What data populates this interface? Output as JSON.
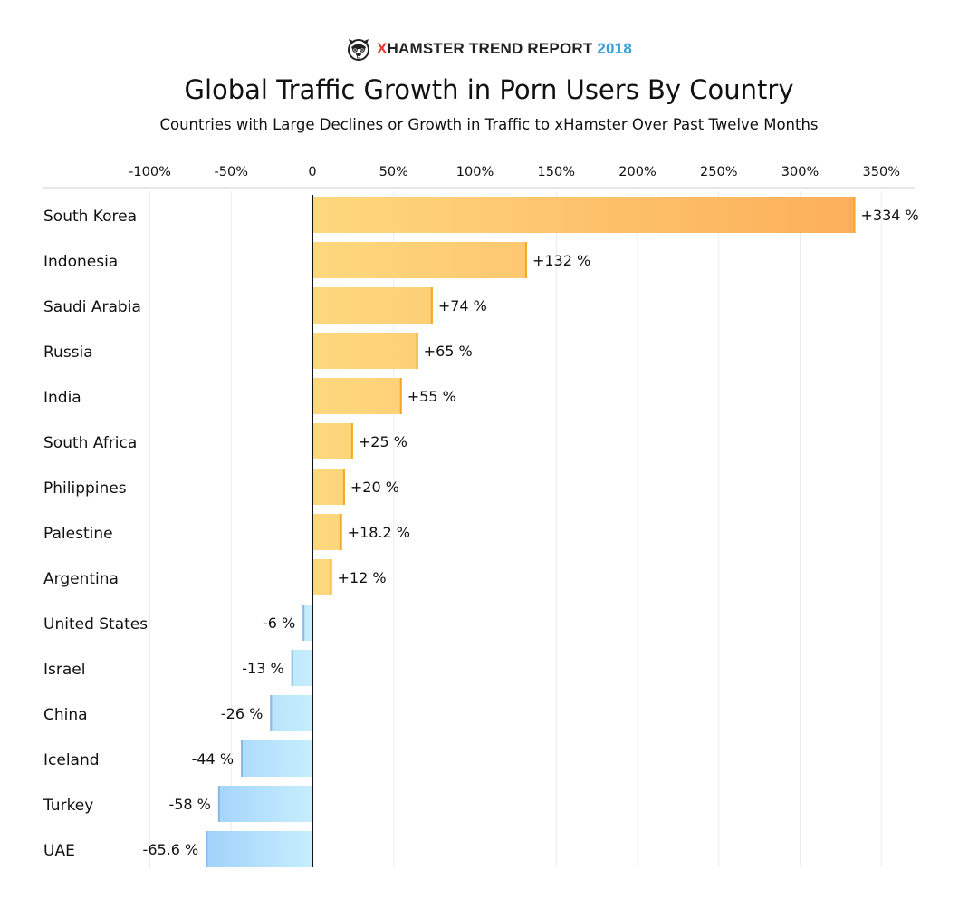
{
  "brand": {
    "logo_icon": "hamster-mascot-icon",
    "x_letter": "X",
    "name": "HAMSTER TREND REPORT",
    "year": "2018",
    "colors": {
      "x": "#e8392e",
      "year": "#3aa0d8"
    }
  },
  "chart_data": {
    "type": "bar",
    "orientation": "horizontal",
    "title": "Global Traffic Growth in Porn Users By Country",
    "subtitle": "Countries with Large Declines or Growth in Traffic to xHamster Over Past Twelve Months",
    "xlim": [
      -100,
      350
    ],
    "x_ticks": [
      -100,
      -50,
      0,
      50,
      100,
      150,
      200,
      250,
      300,
      350
    ],
    "x_tick_labels": [
      "-100%",
      "-50%",
      "0",
      "50%",
      "100%",
      "150%",
      "200%",
      "250%",
      "300%",
      "350%"
    ],
    "x_axis_position": "top",
    "grid": true,
    "categories": [
      "South Korea",
      "Indonesia",
      "Saudi Arabia",
      "Russia",
      "India",
      "South Africa",
      "Philippines",
      "Palestine",
      "Argentina",
      "United States",
      "Israel",
      "China",
      "Iceland",
      "Turkey",
      "UAE"
    ],
    "values": [
      334,
      132,
      74,
      65,
      55,
      25,
      20,
      18.2,
      12,
      -6,
      -13,
      -26,
      -44,
      -58,
      -65.6
    ],
    "value_labels": [
      "+334 %",
      "+132 %",
      "+74 %",
      "+65 %",
      "+55 %",
      "+25 %",
      "+20 %",
      "+18.2 %",
      "+12 %",
      "-6 %",
      "-13 %",
      "-26 %",
      "-44 %",
      "-58 %",
      "-65.6 %"
    ],
    "colors": {
      "positive_start": "#fdd87e",
      "positive_end": "#fdac58",
      "positive_edge": "#f5a623",
      "negative_start": "#c6eefd",
      "negative_end": "#9fd0fa",
      "negative_edge": "#8ab8e6",
      "zero_line": "#111111",
      "grid": "#ececec"
    }
  }
}
